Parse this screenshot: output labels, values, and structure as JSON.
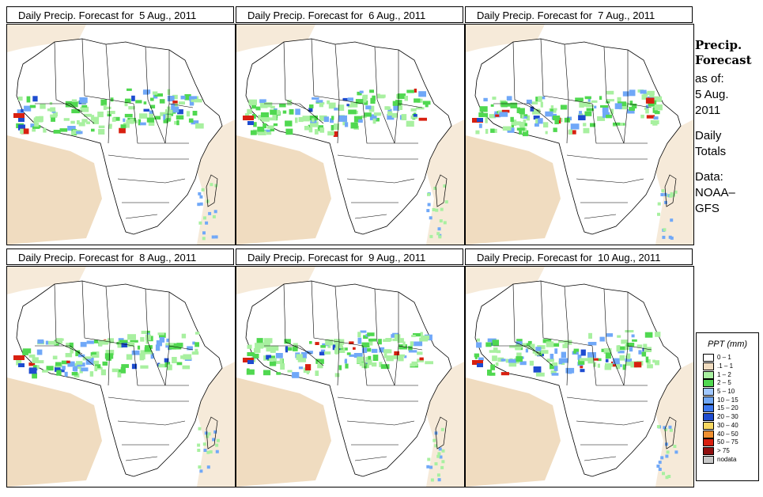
{
  "panels": [
    {
      "title": "Daily Precip. Forecast for  5 Aug., 2011"
    },
    {
      "title": "Daily Precip. Forecast for  6 Aug., 2011"
    },
    {
      "title": "Daily Precip. Forecast for  7 Aug., 2011"
    },
    {
      "title": "Daily Precip. Forecast for  8 Aug., 2011"
    },
    {
      "title": "Daily Precip. Forecast for  9 Aug., 2011"
    },
    {
      "title": "Daily Precip. Forecast for  10 Aug., 2011"
    }
  ],
  "side": {
    "heading_line1": "Precip.",
    "heading_line2": "Forecast",
    "asof_label": "as of:",
    "asof_date_line1": "5 Aug.",
    "asof_date_line2": "2011",
    "totals_line1": "Daily",
    "totals_line2": "Totals",
    "data_label": "Data:",
    "data_source_line1": "NOAA–",
    "data_source_line2": "GFS"
  },
  "legend": {
    "title": "PPT (mm)",
    "items": [
      {
        "label": "0 – 1",
        "color": "#ffffff"
      },
      {
        "label": ".1 – 1",
        "color": "#f0dcc0"
      },
      {
        "label": "1 – 2",
        "color": "#a8f0a0"
      },
      {
        "label": "2 – 5",
        "color": "#50d850"
      },
      {
        "label": "5 – 10",
        "color": "#a0c8ff"
      },
      {
        "label": "10 – 15",
        "color": "#70a8f8"
      },
      {
        "label": "15 – 20",
        "color": "#3c78f0"
      },
      {
        "label": "20 – 30",
        "color": "#1e4cd0"
      },
      {
        "label": "30 – 40",
        "color": "#f8d860"
      },
      {
        "label": "40 – 50",
        "color": "#f09030"
      },
      {
        "label": "50 – 75",
        "color": "#d82010"
      },
      {
        "label": "> 75",
        "color": "#901010"
      },
      {
        "label": "nodata",
        "color": "#c8c8c8"
      }
    ]
  },
  "colors": {
    "dry": "#f0dcc0",
    "light": "#a8f0a0",
    "green": "#50d850",
    "blue": "#70a8f8",
    "darkblue": "#1e4cd0",
    "red": "#d82010",
    "orange": "#f09030"
  }
}
